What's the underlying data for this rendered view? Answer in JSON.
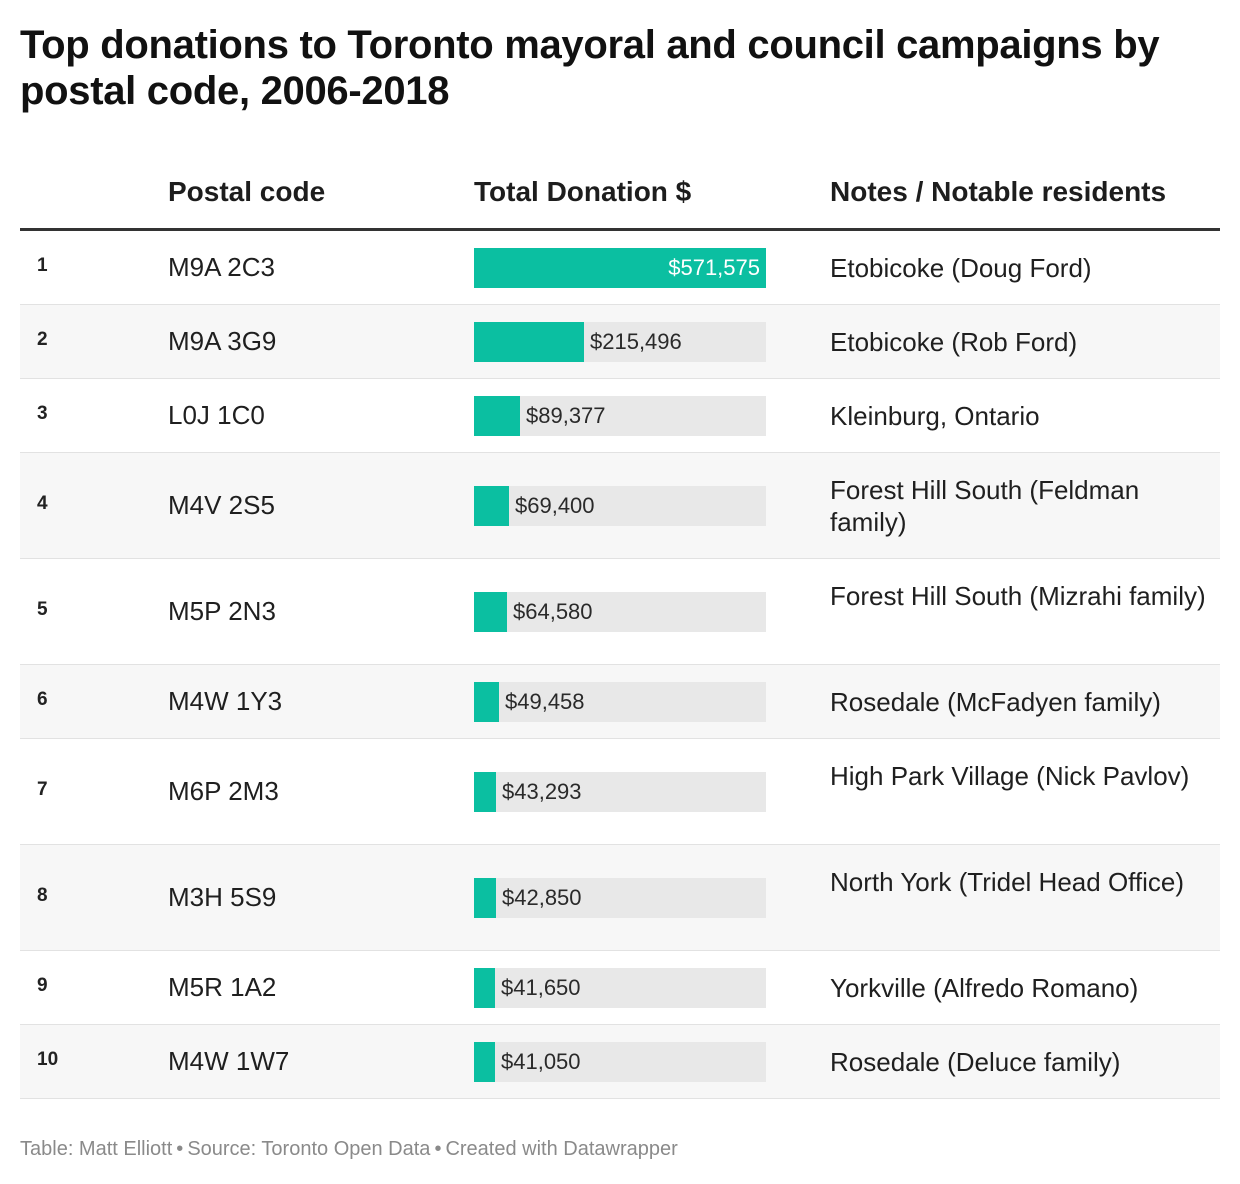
{
  "title": "Top donations to Toronto mayoral and council campaigns by postal code, 2006-2018",
  "columns": [
    "",
    "Postal code",
    "Total Donation $",
    "Notes / Notable residents"
  ],
  "colors": {
    "bar": "#0bbfa1",
    "track": "#e8e8e8",
    "rule": "#333333"
  },
  "chart_data": {
    "type": "table",
    "max_value": 571575,
    "rows": [
      {
        "rank": "1",
        "code": "M9A 2C3",
        "value": 571575,
        "label": "$571,575",
        "note": "Etobicoke (Doug Ford)"
      },
      {
        "rank": "2",
        "code": "M9A 3G9",
        "value": 215496,
        "label": "$215,496",
        "note": "Etobicoke (Rob Ford)"
      },
      {
        "rank": "3",
        "code": "L0J 1C0",
        "value": 89377,
        "label": "$89,377",
        "note": "Kleinburg, Ontario"
      },
      {
        "rank": "4",
        "code": "M4V 2S5",
        "value": 69400,
        "label": "$69,400",
        "note": "Forest Hill South (Feldman family)"
      },
      {
        "rank": "5",
        "code": "M5P 2N3",
        "value": 64580,
        "label": "$64,580",
        "note": "Forest Hill South (Mizrahi family)"
      },
      {
        "rank": "6",
        "code": "M4W 1Y3",
        "value": 49458,
        "label": "$49,458",
        "note": "Rosedale (McFadyen family)"
      },
      {
        "rank": "7",
        "code": "M6P 2M3",
        "value": 43293,
        "label": "$43,293",
        "note": "High Park Village (Nick Pavlov)"
      },
      {
        "rank": "8",
        "code": "M3H 5S9",
        "value": 42850,
        "label": "$42,850",
        "note": "North York (Tridel Head Office)"
      },
      {
        "rank": "9",
        "code": "M5R 1A2",
        "value": 41650,
        "label": "$41,650",
        "note": "Yorkville (Alfredo Romano)"
      },
      {
        "rank": "10",
        "code": "M4W 1W7",
        "value": 41050,
        "label": "$41,050",
        "note": "Rosedale (Deluce family)"
      }
    ]
  },
  "footer": {
    "table": "Table: Matt Elliott",
    "source": "Source: Toronto Open Data",
    "created": "Created with Datawrapper",
    "separator": "•"
  }
}
